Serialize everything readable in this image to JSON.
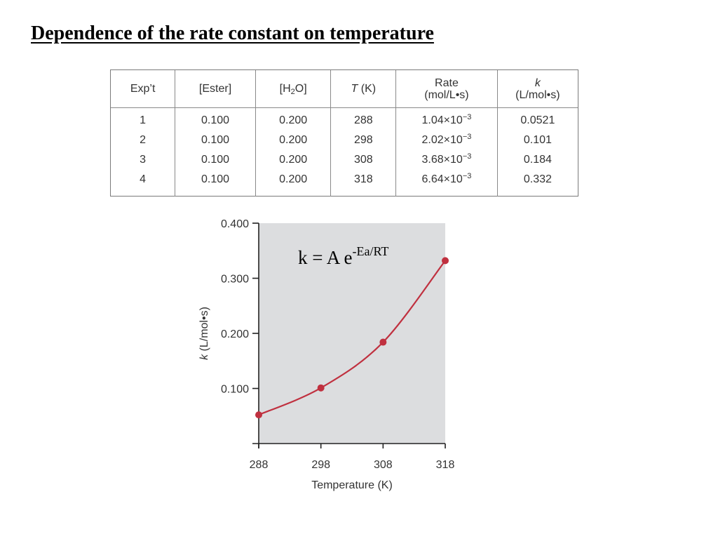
{
  "title": "Dependence of the rate constant on temperature",
  "table": {
    "headers": {
      "exp": "Exp’t",
      "ester": "[Ester]",
      "h2o_pre": "[H",
      "h2o_sub": "2",
      "h2o_post": "O]",
      "temp_symbol": "T",
      "temp_unit": " (K)",
      "rate_line1": "Rate",
      "rate_line2": "(mol/L•s)",
      "k_line1": "k",
      "k_line2": "(L/mol•s)"
    },
    "rows": [
      {
        "exp": "1",
        "ester": "0.100",
        "h2o": "0.200",
        "t": "288",
        "rate_mant": "1.04×10",
        "rate_exp": "−3",
        "k": "0.0521"
      },
      {
        "exp": "2",
        "ester": "0.100",
        "h2o": "0.200",
        "t": "298",
        "rate_mant": "2.02×10",
        "rate_exp": "−3",
        "k": "0.101"
      },
      {
        "exp": "3",
        "ester": "0.100",
        "h2o": "0.200",
        "t": "308",
        "rate_mant": "3.68×10",
        "rate_exp": "−3",
        "k": "0.184"
      },
      {
        "exp": "4",
        "ester": "0.100",
        "h2o": "0.200",
        "t": "318",
        "rate_mant": "6.64×10",
        "rate_exp": "−3",
        "k": "0.332"
      }
    ]
  },
  "equation": {
    "base": "k = A e",
    "exponent": "-Ea/RT"
  },
  "chart_data": {
    "type": "line",
    "x": [
      288,
      298,
      308,
      318
    ],
    "y": [
      0.0521,
      0.101,
      0.184,
      0.332
    ],
    "xlim": [
      288,
      318
    ],
    "ylim": [
      0,
      0.4
    ],
    "xticks": [
      "288",
      "298",
      "308",
      "318"
    ],
    "yticks": [
      "0.100",
      "0.200",
      "0.300",
      "0.400"
    ],
    "ytick_values": [
      0.1,
      0.2,
      0.3,
      0.4
    ],
    "xlabel": "Temperature (K)",
    "ylabel_symbol": "k",
    "ylabel_unit": " (L/mol•s)",
    "grid": false,
    "plot_background": "#dcdddf",
    "series_color": "#c0303f",
    "axis_color": "#222222"
  }
}
